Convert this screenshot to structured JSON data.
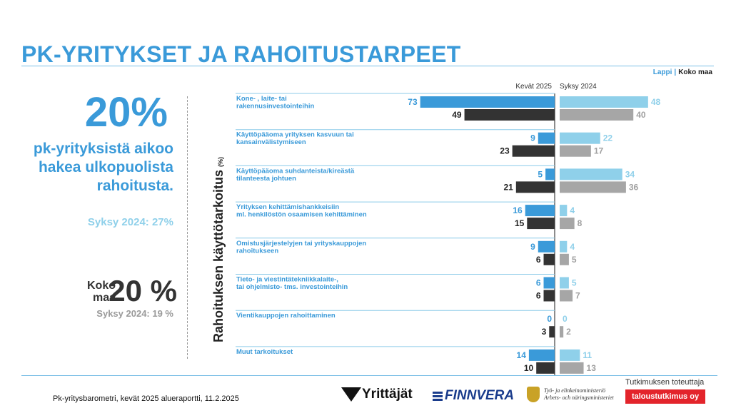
{
  "title": "PK-YRITYKSET JA RAHOITUSTARPEET",
  "legend": {
    "lappi": "Lappi",
    "separator": "|",
    "koko_maa": "Koko maa"
  },
  "left_panel": {
    "big_value": "20%",
    "text": "pk-yrityksistä aikoo hakea ulkopuolista rahoitusta.",
    "previous": "Syksy 2024: 27%",
    "koko_maa_label": "Koko maa",
    "koko_maa_value": "20 %",
    "koko_maa_previous": "Syksy 2024: 19 %"
  },
  "vertical_label": "Rahoituksen käyttötarkoitus",
  "vertical_label_unit": "(%)",
  "footer": {
    "source": "Pk-yritysbarometri, kevät 2025 alueraportti, 11.2.2025",
    "logo_yrittajat": "Yrittäjät",
    "logo_finnvera": "FINNVERA",
    "logo_tem_line1": "Työ- ja elinkeinoministeriö",
    "logo_tem_line2": "Arbets- och näringsministeriet",
    "executor_label": "Tutkimuksen toteuttaja",
    "executor_name": "taloustutkimus oy"
  },
  "colors": {
    "lappi_spring": "#3a9ad9",
    "koko_spring": "#333333",
    "lappi_autumn": "#8fd0ea",
    "koko_autumn": "#a6a6a6",
    "title": "#3a9ad9"
  },
  "chart_data": {
    "type": "bar",
    "orientation": "horizontal",
    "period_left": "Kevät 2025",
    "period_right": "Syksy 2024",
    "unit": "%",
    "xlim": [
      0,
      75
    ],
    "series": [
      {
        "name": "Lappi Kevät 2025",
        "values": [
          73,
          9,
          5,
          16,
          9,
          6,
          0,
          14
        ]
      },
      {
        "name": "Koko maa Kevät 2025",
        "values": [
          49,
          23,
          21,
          15,
          6,
          6,
          3,
          10
        ]
      },
      {
        "name": "Lappi Syksy 2024",
        "values": [
          48,
          22,
          34,
          4,
          4,
          5,
          0,
          11
        ]
      },
      {
        "name": "Koko maa Syksy 2024",
        "values": [
          40,
          17,
          36,
          8,
          5,
          7,
          2,
          13
        ]
      }
    ],
    "categories": [
      [
        "Kone- , laite- tai",
        "rakennusinvestointeihin"
      ],
      [
        "Käyttöpääoma yrityksen kasvuun tai",
        "kansainvälistymiseen"
      ],
      [
        "Käyttöpääoma suhdanteista/kireästä",
        "tilanteesta johtuen"
      ],
      [
        "Yrityksen kehittämishankkeisiin",
        "ml. henkilöstön osaamisen kehittäminen"
      ],
      [
        "Omistusjärjestelyjen tai yrityskauppojen",
        "rahoitukseen"
      ],
      [
        "Tieto- ja viestintätekniikkalaite-,",
        "tai ohjelmisto- tms. investointeihin"
      ],
      [
        "Vientikauppojen rahoittaminen"
      ],
      [
        "Muut tarkoitukset"
      ]
    ]
  }
}
